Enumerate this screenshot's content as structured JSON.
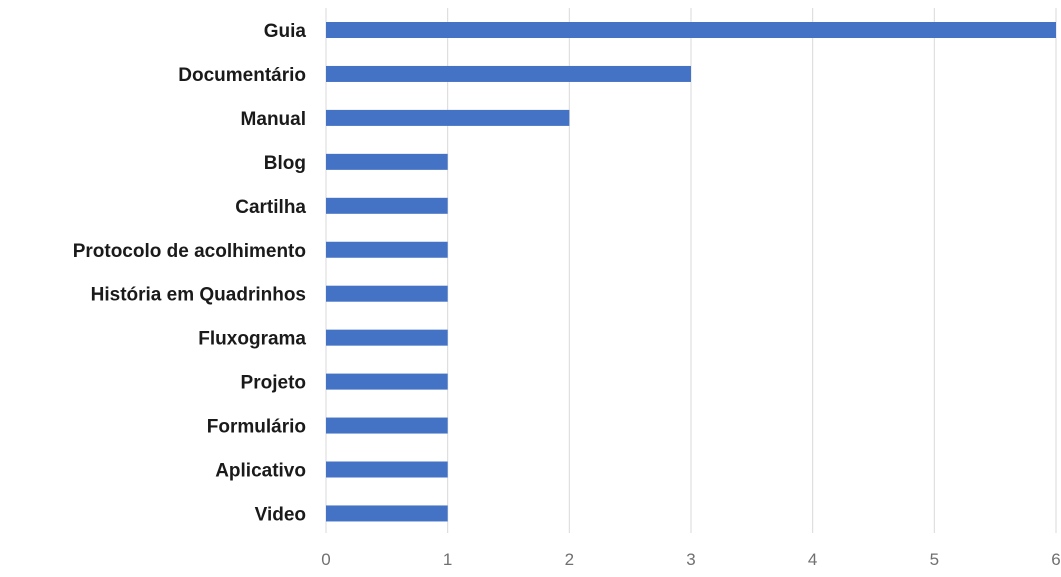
{
  "chart_data": {
    "type": "bar",
    "orientation": "horizontal",
    "title": "",
    "xlabel": "",
    "ylabel": "",
    "categories": [
      "Guia",
      "Documentário",
      "Manual",
      "Blog",
      "Cartilha",
      "Protocolo de acolhimento",
      "História em Quadrinhos",
      "Fluxograma",
      "Projeto",
      "Formulário",
      "Aplicativo",
      "Video"
    ],
    "values": [
      6,
      3,
      2,
      1,
      1,
      1,
      1,
      1,
      1,
      1,
      1,
      1
    ],
    "xlim": [
      0,
      6
    ],
    "xticks": [
      "0",
      "1",
      "2",
      "3",
      "4",
      "5",
      "6"
    ],
    "grid": "vertical",
    "legend": "none",
    "colors": {
      "bar": "#4472C4",
      "grid": "#d9d9d9",
      "category_text": "#1a1a1a",
      "tick_text": "#707070"
    }
  }
}
